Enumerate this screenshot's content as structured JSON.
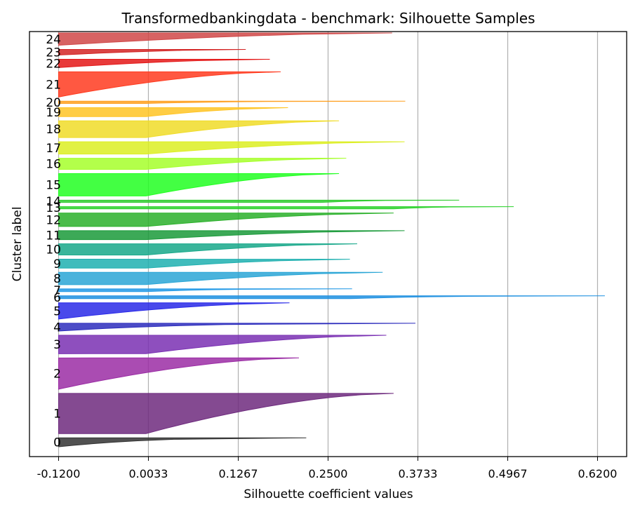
{
  "chart_data": {
    "type": "area",
    "title": "Transformedbankingdata - benchmark: Silhouette Samples",
    "xlabel": "Silhouette coefficient values",
    "ylabel": "Cluster label",
    "xlim": [
      -0.16,
      0.66
    ],
    "x_ticks": [
      "-0.1200",
      "0.0033",
      "0.1267",
      "0.2500",
      "0.3733",
      "0.4967",
      "0.6200"
    ],
    "x_tick_values": [
      -0.12,
      0.0033,
      0.1267,
      0.25,
      0.3733,
      0.4967,
      0.62
    ],
    "baseline": -0.12,
    "grid": "vertical",
    "legend": "none",
    "series": [
      {
        "cluster": "0",
        "size": 16,
        "max": 0.22,
        "min": -0.12,
        "color": "#333333",
        "profile": "tail"
      },
      {
        "cluster": "1",
        "size": 72,
        "max": 0.34,
        "min": 0.0,
        "color": "#6e2a7e",
        "profile": "convex"
      },
      {
        "cluster": "2",
        "size": 56,
        "max": 0.21,
        "min": -0.12,
        "color": "#9b2da5",
        "profile": "convex"
      },
      {
        "cluster": "3",
        "size": 33,
        "max": 0.33,
        "min": 0.0,
        "color": "#7a30b3",
        "profile": "convex"
      },
      {
        "cluster": "4",
        "size": 14,
        "max": 0.37,
        "min": -0.12,
        "color": "#2d2dbd",
        "profile": "tail"
      },
      {
        "cluster": "5",
        "size": 29,
        "max": 0.197,
        "min": -0.12,
        "color": "#2929e8",
        "profile": "convex"
      },
      {
        "cluster": "6",
        "size": 5,
        "max": 0.63,
        "min": 0.28,
        "color": "#1e90e0",
        "profile": "tail"
      },
      {
        "cluster": "7",
        "size": 5,
        "max": 0.283,
        "min": 0.0,
        "color": "#2299e6",
        "profile": "tail"
      },
      {
        "cluster": "8",
        "size": 22,
        "max": 0.325,
        "min": 0.0,
        "color": "#2aa6d6",
        "profile": "convex"
      },
      {
        "cluster": "9",
        "size": 16,
        "max": 0.28,
        "min": 0.0,
        "color": "#1fb0b0",
        "profile": "convex"
      },
      {
        "cluster": "10",
        "size": 20,
        "max": 0.29,
        "min": 0.0,
        "color": "#17a88a",
        "profile": "convex"
      },
      {
        "cluster": "11",
        "size": 16,
        "max": 0.355,
        "min": 0.0,
        "color": "#1a9a3a",
        "profile": "convex"
      },
      {
        "cluster": "12",
        "size": 24,
        "max": 0.34,
        "min": 0.0,
        "color": "#2ab02a",
        "profile": "convex"
      },
      {
        "cluster": "13",
        "size": 4,
        "max": 0.505,
        "min": 0.34,
        "color": "#2bd22b",
        "profile": "tail"
      },
      {
        "cluster": "14",
        "size": 4,
        "max": 0.43,
        "min": 0.24,
        "color": "#2fcc2f",
        "profile": "tail"
      },
      {
        "cluster": "15",
        "size": 40,
        "max": 0.265,
        "min": 0.0,
        "color": "#22ff22",
        "profile": "convex"
      },
      {
        "cluster": "16",
        "size": 20,
        "max": 0.275,
        "min": 0.0,
        "color": "#a6ff2a",
        "profile": "convex"
      },
      {
        "cluster": "17",
        "size": 22,
        "max": 0.355,
        "min": 0.0,
        "color": "#dcee22",
        "profile": "convex"
      },
      {
        "cluster": "18",
        "size": 30,
        "max": 0.265,
        "min": 0.0,
        "color": "#f0dc28",
        "profile": "convex"
      },
      {
        "cluster": "19",
        "size": 16,
        "max": 0.195,
        "min": 0.0,
        "color": "#ffc425",
        "profile": "convex"
      },
      {
        "cluster": "20",
        "size": 4,
        "max": 0.356,
        "min": 0.0,
        "color": "#ffa020",
        "profile": "tail"
      },
      {
        "cluster": "21",
        "size": 45,
        "max": 0.185,
        "min": -0.12,
        "color": "#ff3b20",
        "profile": "convex"
      },
      {
        "cluster": "22",
        "size": 15,
        "max": 0.17,
        "min": -0.12,
        "color": "#e41818",
        "profile": "convex"
      },
      {
        "cluster": "23",
        "size": 10,
        "max": 0.137,
        "min": -0.12,
        "color": "#d32424",
        "profile": "convex"
      },
      {
        "cluster": "24",
        "size": 22,
        "max": 0.338,
        "min": -0.12,
        "color": "#d04848",
        "profile": "convex"
      }
    ]
  }
}
